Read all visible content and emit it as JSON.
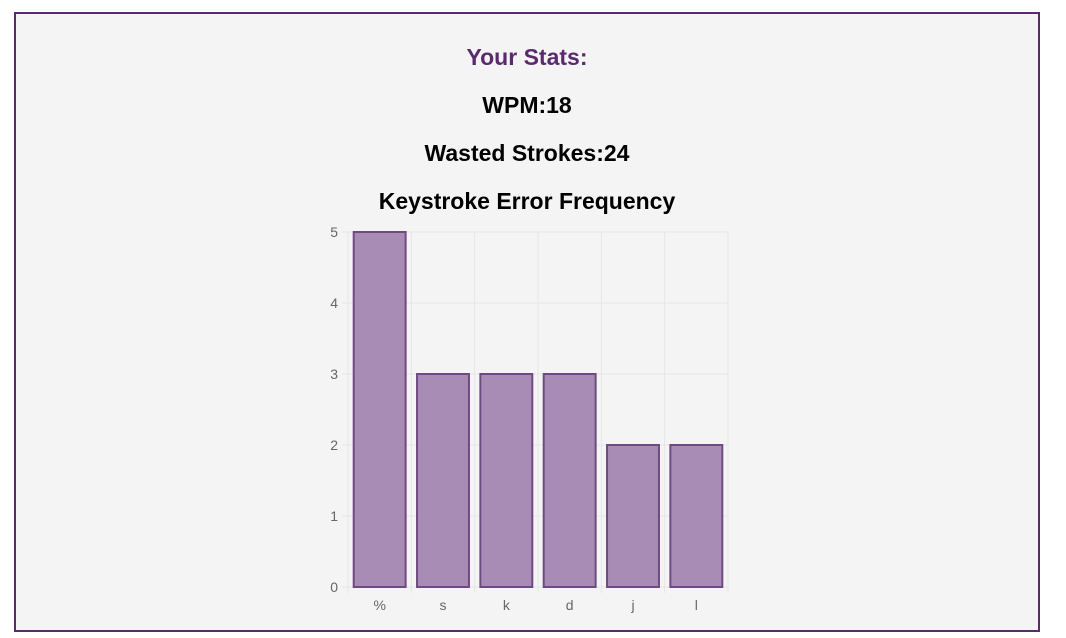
{
  "stats": {
    "title": "Your Stats:",
    "wpm": "WPM:18",
    "wasted": "Wasted Strokes:24"
  },
  "chart_data": {
    "type": "bar",
    "title": "Keystroke Error Frequency",
    "categories": [
      "%",
      "s",
      "k",
      "d",
      "j",
      "l"
    ],
    "values": [
      5,
      3,
      3,
      3,
      2,
      2
    ],
    "ylim": [
      0,
      5
    ],
    "yticks": [
      0,
      1,
      2,
      3,
      4,
      5
    ],
    "grid": true,
    "xlabel": "",
    "ylabel": "",
    "colors": {
      "bar_fill": "#a98cb5",
      "bar_stroke": "#6f4a82",
      "grid": "#e6e6e6",
      "tick_text": "#666666"
    }
  }
}
